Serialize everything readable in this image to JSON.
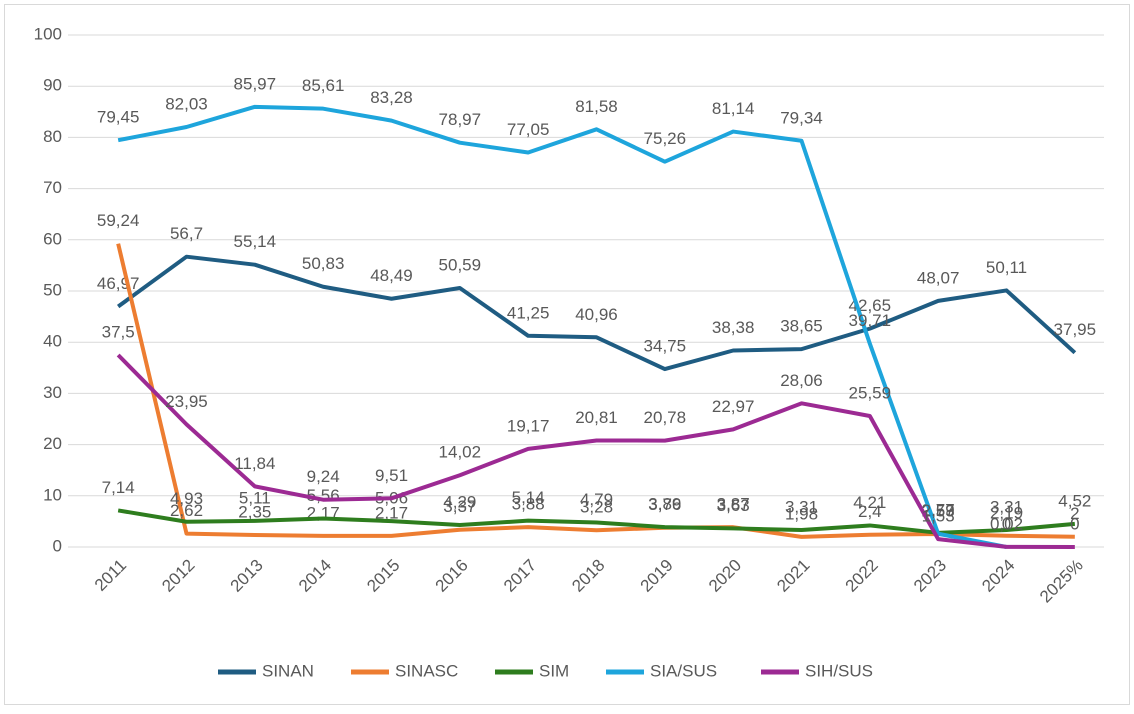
{
  "chart_data": {
    "type": "line",
    "categories": [
      "2011",
      "2012",
      "2013",
      "2014",
      "2015",
      "2016",
      "2017",
      "2018",
      "2019",
      "2020",
      "2021",
      "2022",
      "2023",
      "2024",
      "2025%"
    ],
    "ylim": [
      0,
      100
    ],
    "yticks": [
      0,
      10,
      20,
      30,
      40,
      50,
      60,
      70,
      80,
      90,
      100
    ],
    "grid": true,
    "legend": "bottom",
    "series": [
      {
        "name": "SINAN",
        "color": "#1f5c82",
        "values": [
          46.97,
          56.7,
          55.14,
          50.83,
          48.49,
          50.59,
          41.25,
          40.96,
          34.75,
          38.38,
          38.65,
          42.65,
          48.07,
          50.11,
          37.95
        ],
        "value_labels": [
          "46,97",
          "56,7",
          "55,14",
          "50,83",
          "48,49",
          "50,59",
          "41,25",
          "40,96",
          "34,75",
          "38,38",
          "38,65",
          "42,65",
          "48,07",
          "50,11",
          "37,95"
        ]
      },
      {
        "name": "SINASC",
        "color": "#ed7d31",
        "values": [
          59.24,
          2.62,
          2.35,
          2.17,
          2.17,
          3.37,
          3.88,
          3.28,
          3.76,
          3.87,
          1.98,
          2.4,
          2.53,
          2.19,
          2
        ],
        "value_labels": [
          "59,24",
          "2,62",
          "2,35",
          "2,17",
          "2,17",
          "3,37",
          "3,88",
          "3,28",
          "3,76",
          "3,87",
          "1,98",
          "2,4",
          "2,53",
          "2,19",
          "2"
        ]
      },
      {
        "name": "SIM",
        "color": "#2e7d1e",
        "values": [
          7.14,
          4.93,
          5.11,
          5.56,
          5.06,
          4.29,
          5.14,
          4.79,
          3.89,
          3.63,
          3.31,
          4.21,
          2.77,
          3.31,
          4.52
        ],
        "value_labels": [
          "7,14",
          "4,93",
          "5,11",
          "5,56",
          "5,06",
          "4,29",
          "5,14",
          "4,79",
          "3,89",
          "3,63",
          "3,31",
          "4,21",
          "2,77",
          "3,31",
          "4,52"
        ]
      },
      {
        "name": "SIA/SUS",
        "color": "#1ea5dc",
        "values": [
          79.45,
          82.03,
          85.97,
          85.61,
          83.28,
          78.97,
          77.05,
          81.58,
          75.26,
          81.14,
          79.34,
          39.71,
          2.59,
          0,
          null
        ],
        "value_labels": [
          "79,45",
          "82,03",
          "85,97",
          "85,61",
          "83,28",
          "78,97",
          "77,05",
          "81,58",
          "75,26",
          "81,14",
          "79,34",
          "39,71",
          "2,59",
          "0",
          null
        ]
      },
      {
        "name": "SIH/SUS",
        "color": "#9c2a93",
        "values": [
          37.5,
          23.95,
          11.84,
          9.24,
          9.51,
          14.02,
          19.17,
          20.81,
          20.78,
          22.97,
          28.06,
          25.59,
          1.53,
          0.02,
          0
        ],
        "value_labels": [
          "37,5",
          "23,95",
          "11,84",
          "9,24",
          "9,51",
          "14,02",
          "19,17",
          "20,81",
          "20,78",
          "22,97",
          "28,06",
          "25,59",
          "1,53",
          "0,02",
          "0"
        ]
      }
    ]
  }
}
